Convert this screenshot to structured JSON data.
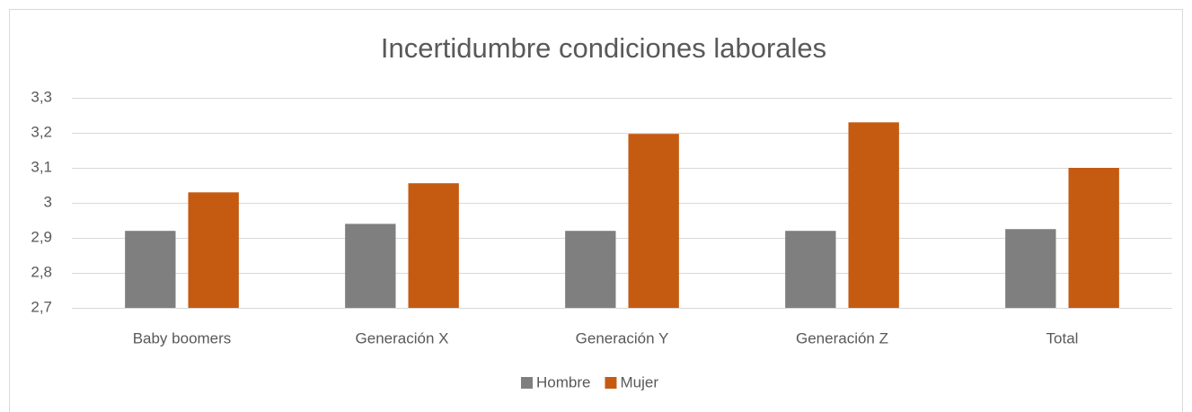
{
  "chart_data": {
    "type": "bar",
    "title": "Incertidumbre condiciones laborales",
    "categories": [
      "Baby boomers",
      "Generación X",
      "Generación Y",
      "Generación Z",
      "Total"
    ],
    "series": [
      {
        "name": "Hombre",
        "color": "#7f7f7f",
        "values": [
          2.92,
          2.94,
          2.92,
          2.92,
          2.925
        ]
      },
      {
        "name": "Mujer",
        "color": "#c55a11",
        "values": [
          3.03,
          3.056,
          3.197,
          3.23,
          3.1
        ]
      }
    ],
    "ylim": [
      2.7,
      3.3
    ],
    "yticks": [
      {
        "value": 2.7,
        "label": "2,7"
      },
      {
        "value": 2.8,
        "label": "2,8"
      },
      {
        "value": 2.9,
        "label": "2,9"
      },
      3,
      {
        "value": 3.1,
        "label": "3,1"
      },
      {
        "value": 3.2,
        "label": "3,2"
      },
      {
        "value": 3.3,
        "label": "3,3"
      }
    ],
    "grid": true,
    "legend": "bottom"
  }
}
